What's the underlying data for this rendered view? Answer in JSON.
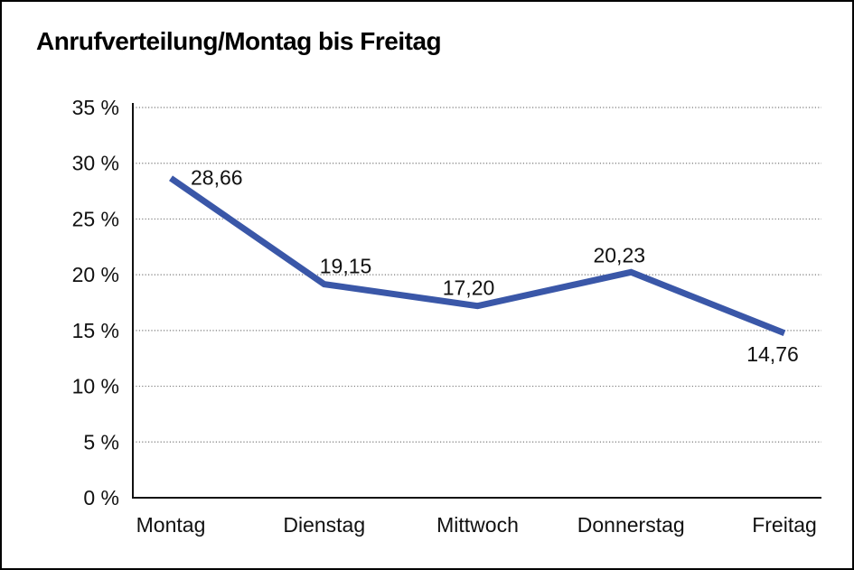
{
  "window": {
    "background_color": "#ffffff",
    "border_color": "#000000"
  },
  "chart_data": {
    "type": "line",
    "title": "Anrufverteilung/Montag bis Freitag",
    "xlabel": "",
    "ylabel": "",
    "categories": [
      "Montag",
      "Dienstag",
      "Mittwoch",
      "Donnerstag",
      "Freitag"
    ],
    "series": [
      {
        "name": "Anrufverteilung",
        "values": [
          28.66,
          19.15,
          17.2,
          20.23,
          14.76
        ]
      }
    ],
    "point_labels": [
      "28,66",
      "19,15",
      "17,20",
      "20,23",
      "14,76"
    ],
    "ylim": [
      0,
      35
    ],
    "y_tick_step": 5,
    "y_ticks": [
      {
        "value": 35,
        "label": "35 %"
      },
      {
        "value": 30,
        "label": "30 %"
      },
      {
        "value": 25,
        "label": "25 %"
      },
      {
        "value": 20,
        "label": "20 %"
      },
      {
        "value": 15,
        "label": "15 %"
      },
      {
        "value": 10,
        "label": "10 %"
      },
      {
        "value": 5,
        "label": "5 %"
      },
      {
        "value": 0,
        "label": "0 %"
      }
    ],
    "grid": "horizontal-dotted",
    "legend_position": "none",
    "colors": {
      "line": "#3A57A8",
      "axis": "#111111",
      "grid": "#7a7a7a",
      "text": "#111111"
    }
  }
}
